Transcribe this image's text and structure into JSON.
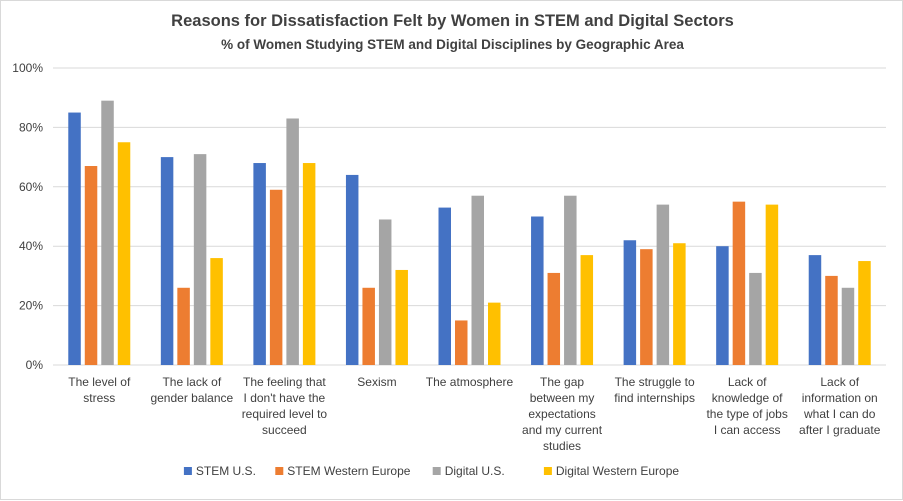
{
  "chart_data": {
    "type": "bar",
    "title": "Reasons for Dissatisfaction Felt by Women in STEM and Digital Sectors",
    "subtitle": "% of Women Studying STEM and Digital Disciplines by Geographic Area",
    "categories": [
      [
        "The level of",
        "stress"
      ],
      [
        "The lack of",
        "gender balance"
      ],
      [
        "The feeling that",
        "I don't have the",
        "required level to",
        "succeed"
      ],
      [
        "Sexism"
      ],
      [
        "The atmosphere"
      ],
      [
        "The gap",
        "between my",
        "expectations",
        "and my current",
        "studies"
      ],
      [
        "The struggle to",
        "find internships"
      ],
      [
        "Lack of",
        "knowledge of",
        "the type of jobs",
        "I can access"
      ],
      [
        "Lack of",
        "information on",
        "what I can do",
        "after I graduate"
      ]
    ],
    "series": [
      {
        "name": "STEM U.S.",
        "color": "#4472c4",
        "values": [
          85,
          70,
          68,
          64,
          53,
          50,
          42,
          40,
          37
        ]
      },
      {
        "name": "STEM Western Europe",
        "color": "#ed7d31",
        "values": [
          67,
          26,
          59,
          26,
          15,
          31,
          39,
          55,
          30
        ]
      },
      {
        "name": "Digital U.S.",
        "color": "#a5a5a5",
        "values": [
          89,
          71,
          83,
          49,
          57,
          57,
          54,
          31,
          26
        ]
      },
      {
        "name": "Digital Western Europe",
        "color": "#ffc000",
        "values": [
          75,
          36,
          68,
          32,
          21,
          37,
          41,
          54,
          35
        ]
      }
    ],
    "ylim": [
      0,
      100
    ],
    "yticks": [
      "0%",
      "20%",
      "40%",
      "60%",
      "80%",
      "100%"
    ],
    "grid": true,
    "legend_position": "bottom"
  }
}
